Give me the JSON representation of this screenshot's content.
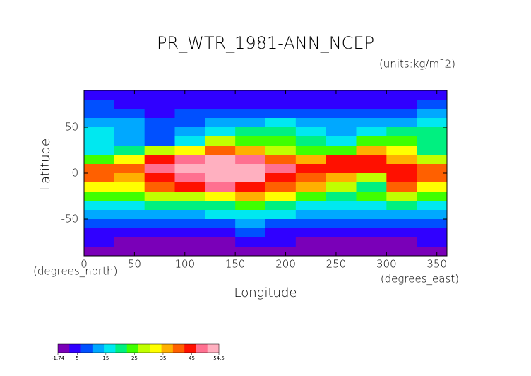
{
  "chart_data": {
    "type": "heatmap",
    "title": "PR_WTR_1981-ANN_NCEP",
    "subtitle": "(units:kg/m¯2)",
    "xlabel": "Longitude",
    "ylabel": "Latitude",
    "xunits": "(degrees_east)",
    "yunits": "(degrees_north)",
    "xlim": [
      0,
      360
    ],
    "xticks": [
      0,
      50,
      100,
      150,
      200,
      250,
      300,
      350
    ],
    "ylim": [
      -90,
      90
    ],
    "yticks": [
      -50,
      0,
      50
    ],
    "x": [
      15,
      45,
      75,
      105,
      135,
      165,
      195,
      225,
      255,
      285,
      315,
      345
    ],
    "y": [
      85,
      75,
      65,
      55,
      45,
      35,
      25,
      15,
      5,
      -5,
      -15,
      -25,
      -35,
      -45,
      -55,
      -65,
      -75,
      -85
    ],
    "z": [
      [
        4,
        3,
        3,
        3,
        3,
        3,
        3,
        3,
        3,
        3,
        3,
        4
      ],
      [
        7,
        5,
        4,
        4,
        4,
        5,
        5,
        4,
        4,
        5,
        5,
        7
      ],
      [
        10,
        8,
        6,
        7,
        8,
        10,
        10,
        9,
        8,
        8,
        9,
        11
      ],
      [
        14,
        11,
        9,
        10,
        12,
        14,
        15,
        14,
        11,
        12,
        14,
        16
      ],
      [
        17,
        13,
        10,
        12,
        18,
        20,
        20,
        18,
        14,
        16,
        20,
        19
      ],
      [
        16,
        14,
        8,
        18,
        28,
        26,
        24,
        22,
        15,
        24,
        26,
        20
      ],
      [
        16,
        22,
        28,
        34,
        40,
        36,
        30,
        26,
        24,
        36,
        32,
        22
      ],
      [
        24,
        32,
        44,
        48,
        52,
        50,
        42,
        36,
        44,
        44,
        36,
        30
      ],
      [
        42,
        42,
        48,
        52,
        54,
        54,
        50,
        46,
        46,
        46,
        46,
        40
      ],
      [
        40,
        38,
        46,
        50,
        54,
        52,
        46,
        42,
        38,
        30,
        44,
        42
      ],
      [
        34,
        32,
        40,
        44,
        48,
        46,
        42,
        36,
        30,
        22,
        40,
        34
      ],
      [
        26,
        26,
        30,
        30,
        32,
        36,
        32,
        26,
        22,
        24,
        30,
        24
      ],
      [
        18,
        18,
        20,
        20,
        22,
        24,
        22,
        18,
        18,
        16,
        20,
        18
      ],
      [
        13,
        13,
        14,
        14,
        15,
        16,
        15,
        13,
        13,
        12,
        14,
        13
      ],
      [
        9,
        9,
        10,
        10,
        10,
        11,
        10,
        9,
        9,
        9,
        9,
        9
      ],
      [
        6,
        6,
        6,
        6,
        6,
        7,
        6,
        6,
        6,
        6,
        6,
        6
      ],
      [
        3,
        2,
        1,
        1,
        2,
        3,
        3,
        2,
        2,
        2,
        2,
        3
      ],
      [
        1,
        0,
        0,
        0,
        0,
        1,
        1,
        1,
        0,
        0,
        0,
        1
      ]
    ],
    "colorbar": {
      "range": [
        -1.74,
        54.5
      ],
      "ticks": [
        -1.74,
        5,
        15,
        25,
        35,
        45,
        54.5
      ],
      "colors": [
        "#7a00b8",
        "#3000ff",
        "#0050ff",
        "#00a8ff",
        "#00e8f0",
        "#00f080",
        "#40ff00",
        "#c0ff00",
        "#ffff00",
        "#ffb000",
        "#ff6000",
        "#ff1000",
        "#ff7090",
        "#ffb0c0"
      ]
    }
  }
}
